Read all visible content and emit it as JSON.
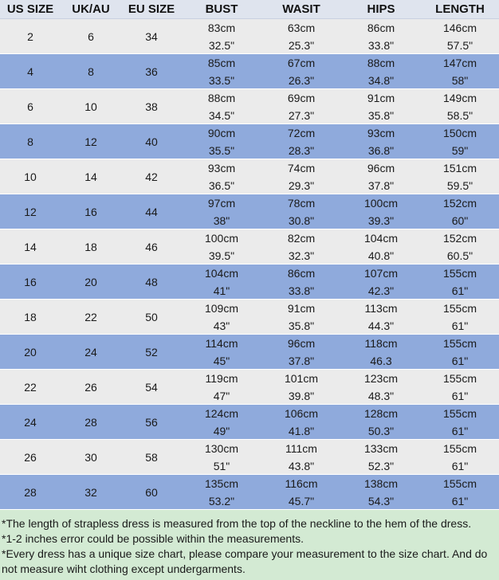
{
  "headers": [
    "US SIZE",
    "UK/AU",
    "EU SIZE",
    "BUST",
    "WASIT",
    "HIPS",
    "LENGTH"
  ],
  "rows": [
    {
      "us": "2",
      "uk": "6",
      "eu": "34",
      "bust": [
        "83cm",
        "32.5\""
      ],
      "waist": [
        "63cm",
        "25.3\""
      ],
      "hips": [
        "86cm",
        "33.8\""
      ],
      "length": [
        "146cm",
        "57.5\""
      ]
    },
    {
      "us": "4",
      "uk": "8",
      "eu": "36",
      "bust": [
        "85cm",
        "33.5\""
      ],
      "waist": [
        "67cm",
        "26.3\""
      ],
      "hips": [
        "88cm",
        "34.8\""
      ],
      "length": [
        "147cm",
        "58\""
      ]
    },
    {
      "us": "6",
      "uk": "10",
      "eu": "38",
      "bust": [
        "88cm",
        "34.5\""
      ],
      "waist": [
        "69cm",
        "27.3\""
      ],
      "hips": [
        "91cm",
        "35.8\""
      ],
      "length": [
        "149cm",
        "58.5\""
      ]
    },
    {
      "us": "8",
      "uk": "12",
      "eu": "40",
      "bust": [
        "90cm",
        "35.5\""
      ],
      "waist": [
        "72cm",
        "28.3\""
      ],
      "hips": [
        "93cm",
        "36.8\""
      ],
      "length": [
        "150cm",
        "59\""
      ]
    },
    {
      "us": "10",
      "uk": "14",
      "eu": "42",
      "bust": [
        "93cm",
        "36.5\""
      ],
      "waist": [
        "74cm",
        "29.3\""
      ],
      "hips": [
        "96cm",
        "37.8\""
      ],
      "length": [
        "151cm",
        "59.5\""
      ]
    },
    {
      "us": "12",
      "uk": "16",
      "eu": "44",
      "bust": [
        "97cm",
        "38\""
      ],
      "waist": [
        "78cm",
        "30.8\""
      ],
      "hips": [
        "100cm",
        "39.3\""
      ],
      "length": [
        "152cm",
        "60\""
      ]
    },
    {
      "us": "14",
      "uk": "18",
      "eu": "46",
      "bust": [
        "100cm",
        "39.5\""
      ],
      "waist": [
        "82cm",
        "32.3\""
      ],
      "hips": [
        "104cm",
        "40.8\""
      ],
      "length": [
        "152cm",
        "60.5\""
      ]
    },
    {
      "us": "16",
      "uk": "20",
      "eu": "48",
      "bust": [
        "104cm",
        "41\""
      ],
      "waist": [
        "86cm",
        "33.8\""
      ],
      "hips": [
        "107cm",
        "42.3\""
      ],
      "length": [
        "155cm",
        "61\""
      ]
    },
    {
      "us": "18",
      "uk": "22",
      "eu": "50",
      "bust": [
        "109cm",
        "43\""
      ],
      "waist": [
        "91cm",
        "35.8\""
      ],
      "hips": [
        "113cm",
        "44.3\""
      ],
      "length": [
        "155cm",
        "61\""
      ]
    },
    {
      "us": "20",
      "uk": "24",
      "eu": "52",
      "bust": [
        "114cm",
        "45\""
      ],
      "waist": [
        "96cm",
        "37.8\""
      ],
      "hips": [
        "118cm",
        "46.3"
      ],
      "length": [
        "155cm",
        "61\""
      ]
    },
    {
      "us": "22",
      "uk": "26",
      "eu": "54",
      "bust": [
        "119cm",
        "47\""
      ],
      "waist": [
        "101cm",
        "39.8\""
      ],
      "hips": [
        "123cm",
        "48.3\""
      ],
      "length": [
        "155cm",
        "61\""
      ]
    },
    {
      "us": "24",
      "uk": "28",
      "eu": "56",
      "bust": [
        "124cm",
        "49\""
      ],
      "waist": [
        "106cm",
        "41.8\""
      ],
      "hips": [
        "128cm",
        "50.3\""
      ],
      "length": [
        "155cm",
        "61\""
      ]
    },
    {
      "us": "26",
      "uk": "30",
      "eu": "58",
      "bust": [
        "130cm",
        "51\""
      ],
      "waist": [
        "111cm",
        "43.8\""
      ],
      "hips": [
        "133cm",
        "52.3\""
      ],
      "length": [
        "155cm",
        "61\""
      ]
    },
    {
      "us": "28",
      "uk": "32",
      "eu": "60",
      "bust": [
        "135cm",
        "53.2\""
      ],
      "waist": [
        "116cm",
        "45.7\""
      ],
      "hips": [
        "138cm",
        "54.3\""
      ],
      "length": [
        "155cm",
        "61\""
      ]
    }
  ],
  "notes": [
    "*The length of strapless dress is measured from the top of the neckline to the hem of the dress.",
    "*1-2 inches error could be possible within the measurements.",
    "*Every dress has a unique size chart, please compare your measurement to the size chart. And do not measure wiht clothing except undergarments."
  ]
}
